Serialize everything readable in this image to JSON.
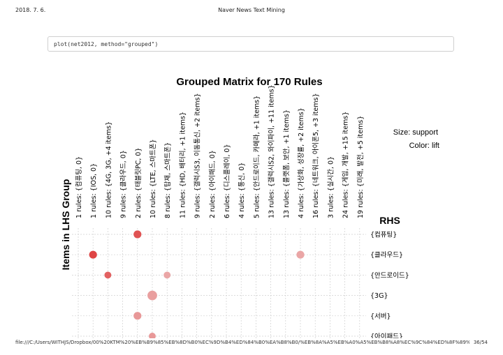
{
  "header": {
    "date": "2018. 7. 6.",
    "title": "Naver News Text Mining"
  },
  "code": "plot(net2012, method=\"grouped\")",
  "footer": {
    "path": "file:///C:/Users/WITHJS/Dropbox/00%20KTM%20%EB%B9%85%EB%8D%B0%EC%9D%B4%ED%84%B0%EA%B8%B0/%EB%8A%A5%EB%A0%A5%EB%B8%A8%EC%9C%84%ED%8F%89%EA%B0%80/...",
    "page": "36/54"
  },
  "chart_data": {
    "type": "scatter",
    "title": "Grouped Matrix for 170 Rules",
    "xlabel": "Items in LHS Group",
    "ylabel": "RHS",
    "size_legend": "Size: support",
    "color_legend": "Color: lift",
    "lhs_groups": [
      "1 rules: {컴퓨팅, 0}",
      "1 rules: {IOS, 0}",
      "10 rules: {4G, 3G, +4 items}",
      "9 rules: {클라우드, 0}",
      "2 rules: {태블릿PC, 0}",
      "10 rules: {LTE, 스마트폰}",
      "8 rules: {탑재, 스마트폰}",
      "11 rules: {HD, 배터리, +1 items}",
      "9 rules: {갤럭시S3, 이동통신, +2 items}",
      "2 rules: {아이패드, 0}",
      "6 rules: {디스플레이, 0}",
      "4 rules: {통신, 0}",
      "5 rules: {안드로이드, 카메라, +1 items}",
      "13 rules: {갤럭시S2, 와이파이, +11 items}",
      "13 rules: {플랫폼, 보안, +1 items}",
      "4 rules: {가상화, 성장률, +2 items}",
      "16 rules: {네트워크, 아이폰5, +3 items}",
      "3 rules: {실시간, 0}",
      "24 rules: {게임, 개발, +15 items}",
      "19 rules: {미래, 발전, +5 items}"
    ],
    "rhs": [
      "{컴퓨팅}",
      "{클라우드}",
      "{안드로이드}",
      "{3G}",
      "{서버}",
      "{아이패드}"
    ],
    "points": [
      {
        "group": 4,
        "rhs": 0,
        "support": 2,
        "lift": 0.85
      },
      {
        "group": 1,
        "rhs": 1,
        "support": 2,
        "lift": 0.95
      },
      {
        "group": 15,
        "rhs": 1,
        "support": 2,
        "lift": 0.25
      },
      {
        "group": 2,
        "rhs": 2,
        "support": 1.5,
        "lift": 0.75
      },
      {
        "group": 6,
        "rhs": 2,
        "support": 1.5,
        "lift": 0.25
      },
      {
        "group": 5,
        "rhs": 3,
        "support": 3,
        "lift": 0.3
      },
      {
        "group": 4,
        "rhs": 4,
        "support": 2,
        "lift": 0.35
      },
      {
        "group": 5,
        "rhs": 5,
        "support": 1.5,
        "lift": 0.35
      }
    ],
    "grid": true
  }
}
